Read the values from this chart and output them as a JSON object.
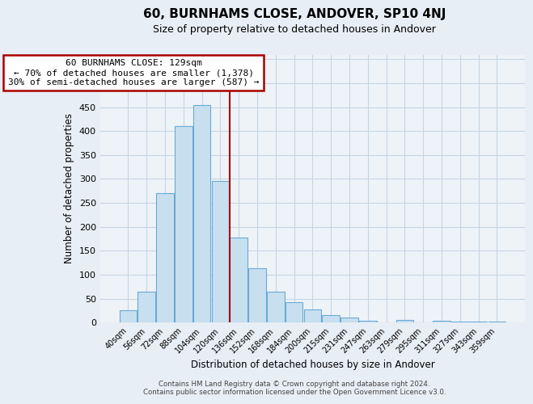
{
  "title": "60, BURNHAMS CLOSE, ANDOVER, SP10 4NJ",
  "subtitle": "Size of property relative to detached houses in Andover",
  "xlabel": "Distribution of detached houses by size in Andover",
  "ylabel": "Number of detached properties",
  "bar_labels": [
    "40sqm",
    "56sqm",
    "72sqm",
    "88sqm",
    "104sqm",
    "120sqm",
    "136sqm",
    "152sqm",
    "168sqm",
    "184sqm",
    "200sqm",
    "215sqm",
    "231sqm",
    "247sqm",
    "263sqm",
    "279sqm",
    "295sqm",
    "311sqm",
    "327sqm",
    "343sqm",
    "359sqm"
  ],
  "bar_values": [
    25,
    65,
    270,
    410,
    455,
    295,
    178,
    113,
    65,
    43,
    27,
    16,
    11,
    4,
    0,
    5,
    0,
    3,
    2,
    2,
    2
  ],
  "bar_color": "#c8dff0",
  "bar_edge_color": "#6aaad4",
  "vline_color": "#aa0000",
  "annotation_title": "60 BURNHAMS CLOSE: 129sqm",
  "annotation_line1": "← 70% of detached houses are smaller (1,378)",
  "annotation_line2": "30% of semi-detached houses are larger (587) →",
  "annotation_box_color": "#ffffff",
  "annotation_box_edge": "#aa0000",
  "ylim": [
    0,
    560
  ],
  "yticks": [
    0,
    50,
    100,
    150,
    200,
    250,
    300,
    350,
    400,
    450,
    500,
    550
  ],
  "footer_line1": "Contains HM Land Registry data © Crown copyright and database right 2024.",
  "footer_line2": "Contains public sector information licensed under the Open Government Licence v3.0.",
  "background_color": "#e8eef5",
  "plot_bg_color": "#eef3f8",
  "grid_color": "#c5d5e5"
}
